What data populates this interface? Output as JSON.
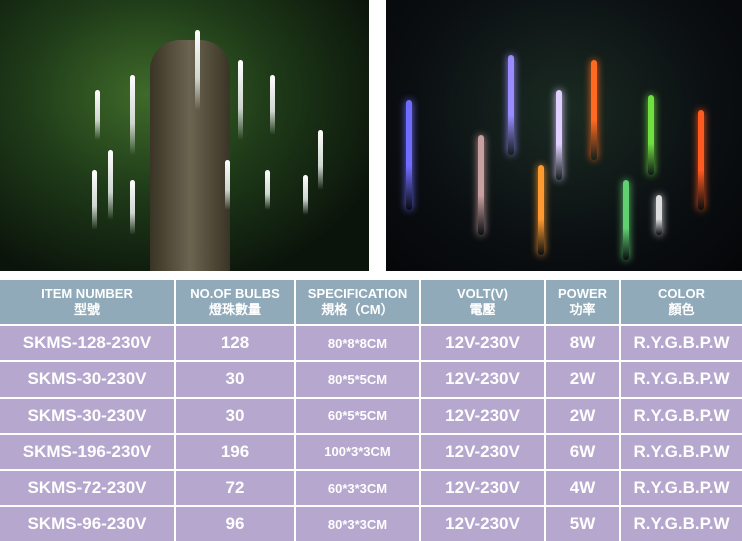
{
  "photos": [
    {
      "subject": "tree-with-white-meteor-tubes"
    },
    {
      "subject": "colored-meteor-tubes-at-night"
    }
  ],
  "table": {
    "headers": [
      {
        "en": "ITEM NUMBER",
        "zh": "型號"
      },
      {
        "en": "NO.OF BULBS",
        "zh": "燈珠數量"
      },
      {
        "en": "SPECIFICATION",
        "zh": "規格（CM）"
      },
      {
        "en": "VOLT(V)",
        "zh": "電壓"
      },
      {
        "en": "POWER",
        "zh": "功率"
      },
      {
        "en": "COLOR",
        "zh": "顏色"
      }
    ],
    "rows": [
      [
        "SKMS-128-230V",
        "128",
        "80*8*8CM",
        "12V-230V",
        "8W",
        "R.Y.G.B.P.W"
      ],
      [
        "SKMS-30-230V",
        "30",
        "80*5*5CM",
        "12V-230V",
        "2W",
        "R.Y.G.B.P.W"
      ],
      [
        "SKMS-30-230V",
        "30",
        "60*5*5CM",
        "12V-230V",
        "2W",
        "R.Y.G.B.P.W"
      ],
      [
        "SKMS-196-230V",
        "196",
        "100*3*3CM",
        "12V-230V",
        "6W",
        "R.Y.G.B.P.W"
      ],
      [
        "SKMS-72-230V",
        "72",
        "60*3*3CM",
        "12V-230V",
        "4W",
        "R.Y.G.B.P.W"
      ],
      [
        "SKMS-96-230V",
        "96",
        "80*3*3CM",
        "12V-230V",
        "5W",
        "R.Y.G.B.P.W"
      ]
    ]
  },
  "colors": {
    "header_bg": "#90aab9",
    "row_bg": "#b5a7cd",
    "text": "#ffffff"
  }
}
